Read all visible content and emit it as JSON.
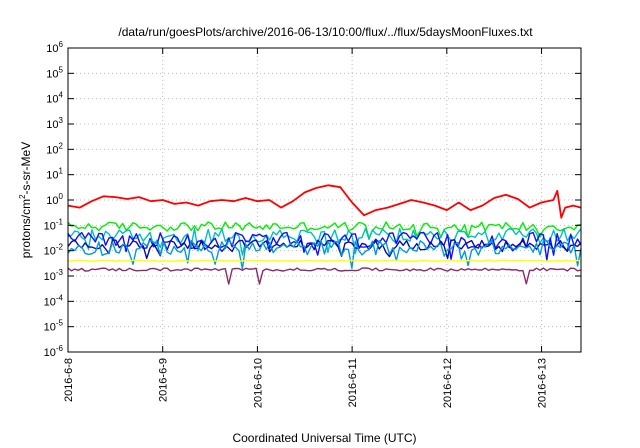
{
  "chart_data": {
    "type": "line",
    "title": "/data/run/goesPlots/archive/2016-06-13/10:00/flux/../flux/5daysMoonFluxes.txt",
    "xlabel": "Coordinated Universal Time (UTC)",
    "ylabel": "protons/cm²-s-sr-MeV",
    "ylabel_parts": {
      "pre": "protons/cm",
      "sup": "2",
      "post": "-s-sr-MeV"
    },
    "y_scale": "log",
    "ylim": [
      1e-06,
      1000000.0
    ],
    "y_ticks": [
      {
        "base": "10",
        "exp": "-6"
      },
      {
        "base": "10",
        "exp": "-5"
      },
      {
        "base": "10",
        "exp": "-4"
      },
      {
        "base": "10",
        "exp": "-3"
      },
      {
        "base": "10",
        "exp": "-2"
      },
      {
        "base": "10",
        "exp": "-1"
      },
      {
        "base": "10",
        "exp": "0"
      },
      {
        "base": "10",
        "exp": "1"
      },
      {
        "base": "10",
        "exp": "2"
      },
      {
        "base": "10",
        "exp": "3"
      },
      {
        "base": "10",
        "exp": "4"
      },
      {
        "base": "10",
        "exp": "5"
      },
      {
        "base": "10",
        "exp": "6"
      }
    ],
    "x_ticks": [
      "2016-6-8",
      "2016-6-9",
      "2016-6-10",
      "2016-6-11",
      "2016-6-12",
      "2016-6-13"
    ],
    "xlim": [
      "2016-06-08 00:00",
      "2016-06-13 10:00"
    ],
    "grid": true,
    "series": [
      {
        "color": "#ff0000",
        "points": [
          [
            "2016-06-08 00:00",
            0.6
          ],
          [
            "2016-06-08 03:00",
            0.5
          ],
          [
            "2016-06-08 06:00",
            0.9
          ],
          [
            "2016-06-08 09:00",
            1.4
          ],
          [
            "2016-06-08 12:00",
            1.3
          ],
          [
            "2016-06-08 15:00",
            1.1
          ],
          [
            "2016-06-08 18:00",
            1.3
          ],
          [
            "2016-06-08 21:00",
            0.9
          ],
          [
            "2016-06-09 00:00",
            1.0
          ],
          [
            "2016-06-09 03:00",
            0.7
          ],
          [
            "2016-06-09 06:00",
            0.8
          ],
          [
            "2016-06-09 09:00",
            0.6
          ],
          [
            "2016-06-09 12:00",
            0.9
          ],
          [
            "2016-06-09 15:00",
            1.0
          ],
          [
            "2016-06-09 18:00",
            0.9
          ],
          [
            "2016-06-09 21:00",
            1.2
          ],
          [
            "2016-06-10 00:00",
            0.9
          ],
          [
            "2016-06-10 03:00",
            1.0
          ],
          [
            "2016-06-10 06:00",
            0.5
          ],
          [
            "2016-06-10 09:00",
            0.9
          ],
          [
            "2016-06-10 12:00",
            2.0
          ],
          [
            "2016-06-10 15:00",
            3.0
          ],
          [
            "2016-06-10 18:00",
            3.8
          ],
          [
            "2016-06-10 21:00",
            3.2
          ],
          [
            "2016-06-11 00:00",
            0.8
          ],
          [
            "2016-06-11 03:00",
            0.25
          ],
          [
            "2016-06-11 06:00",
            0.4
          ],
          [
            "2016-06-11 09:00",
            0.5
          ],
          [
            "2016-06-11 12:00",
            0.7
          ],
          [
            "2016-06-11 15:00",
            1.0
          ],
          [
            "2016-06-11 18:00",
            0.8
          ],
          [
            "2016-06-11 21:00",
            0.6
          ],
          [
            "2016-06-12 00:00",
            0.4
          ],
          [
            "2016-06-12 03:00",
            0.8
          ],
          [
            "2016-06-12 06:00",
            0.4
          ],
          [
            "2016-06-12 09:00",
            0.6
          ],
          [
            "2016-06-12 12:00",
            1.2
          ],
          [
            "2016-06-12 15:00",
            1.6
          ],
          [
            "2016-06-12 18:00",
            1.1
          ],
          [
            "2016-06-12 21:00",
            0.5
          ],
          [
            "2016-06-13 00:00",
            0.8
          ],
          [
            "2016-06-13 03:00",
            1.0
          ],
          [
            "2016-06-13 04:00",
            2.3
          ],
          [
            "2016-06-13 05:00",
            0.2
          ],
          [
            "2016-06-13 06:00",
            0.5
          ],
          [
            "2016-06-13 08:00",
            0.6
          ],
          [
            "2016-06-13 10:00",
            0.5
          ]
        ]
      },
      {
        "color": "#00ee00",
        "approx_level": 0.09,
        "spread": 0.18
      },
      {
        "color": "#00bfbf",
        "approx_level": 0.04,
        "spread": 0.28
      },
      {
        "color": "#1010ff",
        "approx_level": 0.025,
        "spread": 0.32
      },
      {
        "color": "#0a0aa8",
        "approx_level": 0.017,
        "spread": 0.2
      },
      {
        "color": "#0099dd",
        "approx_level": 0.013,
        "spread": 0.3
      },
      {
        "color": "#ffff00",
        "approx_level": 0.004,
        "spread": 0.02
      },
      {
        "color": "#8b2a6a",
        "approx_level": 0.0018,
        "spread": 0.06
      }
    ]
  }
}
